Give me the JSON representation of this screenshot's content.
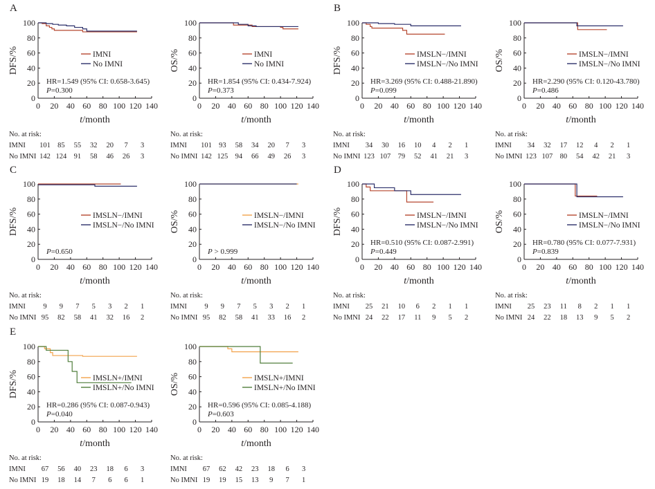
{
  "colors": {
    "imni": "#b5472f",
    "no_imni": "#2b2f6a",
    "imni_e": "#f2a24a",
    "no_imni_e": "#4f7d3a",
    "axis": "#231f20"
  },
  "axis": {
    "xlabel_italic": "t",
    "xlabel_rest": "/month",
    "xticks": [
      "0",
      "20",
      "40",
      "60",
      "80",
      "100",
      "120",
      "140"
    ],
    "yticks": [
      "0",
      "20",
      "40",
      "60",
      "80",
      "100"
    ],
    "dfs_label": "DFS/%",
    "os_label": "OS/%",
    "xlim": [
      0,
      140
    ],
    "ylim": [
      0,
      100
    ]
  },
  "risk_header": "No. at risk:",
  "risk_rows": [
    "IMNI",
    "No IMNI"
  ],
  "panels": [
    {
      "letter": "A"
    },
    {
      "letter": "B"
    },
    {
      "letter": "C"
    },
    {
      "letter": "D"
    },
    {
      "letter": "E"
    }
  ],
  "chart_data": [
    {
      "type": "line",
      "panel": "A",
      "ylabel": "DFS/%",
      "xlim": [
        0,
        140
      ],
      "ylim": [
        0,
        100
      ],
      "legend": [
        "IMNI",
        "No IMNI"
      ],
      "legend_position": "center-right",
      "hr_text": "HR=1.549 (95% CI: 0.658-3.645)",
      "p_text": "P=0.300",
      "series": [
        {
          "name": "IMNI",
          "color_key": "imni",
          "points": [
            [
              0,
              100
            ],
            [
              5,
              99
            ],
            [
              10,
              96
            ],
            [
              14,
              94
            ],
            [
              17,
              92
            ],
            [
              20,
              90
            ],
            [
              50,
              90
            ],
            [
              55,
              88
            ],
            [
              122,
              88
            ]
          ]
        },
        {
          "name": "No IMNI",
          "color_key": "no_imni",
          "points": [
            [
              0,
              100
            ],
            [
              10,
              99
            ],
            [
              18,
              98
            ],
            [
              25,
              97
            ],
            [
              35,
              96
            ],
            [
              45,
              94
            ],
            [
              55,
              92
            ],
            [
              60,
              89
            ],
            [
              122,
              89
            ]
          ]
        }
      ],
      "risk": {
        "times": [
          0,
          20,
          40,
          60,
          80,
          100,
          120,
          140
        ],
        "IMNI": [
          "101",
          "85",
          "55",
          "32",
          "20",
          "7",
          "3"
        ],
        "No IMNI": [
          "142",
          "124",
          "91",
          "58",
          "46",
          "26",
          "3"
        ]
      }
    },
    {
      "type": "line",
      "panel": "A",
      "ylabel": "OS/%",
      "xlim": [
        0,
        140
      ],
      "ylim": [
        0,
        100
      ],
      "legend": [
        "IMNI",
        "No IMNI"
      ],
      "legend_position": "center-right",
      "hr_text": "HR=1.854 (95% CI: 0.434-7.924)",
      "p_text": "P=0.373",
      "series": [
        {
          "name": "IMNI",
          "color_key": "imni",
          "points": [
            [
              0,
              100
            ],
            [
              40,
              100
            ],
            [
              42,
              97
            ],
            [
              60,
              97
            ],
            [
              65,
              95
            ],
            [
              100,
              94
            ],
            [
              103,
              92
            ],
            [
              122,
              92
            ]
          ]
        },
        {
          "name": "No IMNI",
          "color_key": "no_imni",
          "points": [
            [
              0,
              100
            ],
            [
              45,
              100
            ],
            [
              48,
              98
            ],
            [
              60,
              96
            ],
            [
              70,
              95
            ],
            [
              122,
              95
            ]
          ]
        }
      ],
      "risk": {
        "times": [
          0,
          20,
          40,
          60,
          80,
          100,
          120,
          140
        ],
        "IMNI": [
          "101",
          "93",
          "58",
          "34",
          "20",
          "7",
          "3"
        ],
        "No IMNI": [
          "142",
          "125",
          "94",
          "66",
          "49",
          "26",
          "3"
        ]
      }
    },
    {
      "type": "line",
      "panel": "B",
      "ylabel": "DFS/%",
      "xlim": [
        0,
        140
      ],
      "ylim": [
        0,
        100
      ],
      "legend": [
        "IMSLN−/IMNI",
        "IMSLN−/No IMNI"
      ],
      "legend_position": "center-right",
      "hr_text": "HR=3.269 (95% CI: 0.488-21.890)",
      "p_text": "P=0.099",
      "series": [
        {
          "name": "IMSLN−/IMNI",
          "color_key": "imni",
          "points": [
            [
              0,
              100
            ],
            [
              5,
              98
            ],
            [
              10,
              95
            ],
            [
              12,
              93
            ],
            [
              45,
              93
            ],
            [
              50,
              90
            ],
            [
              55,
              85
            ],
            [
              102,
              85
            ]
          ]
        },
        {
          "name": "IMSLN−/No IMNI",
          "color_key": "no_imni",
          "points": [
            [
              0,
              100
            ],
            [
              20,
              99
            ],
            [
              40,
              98
            ],
            [
              60,
              96
            ],
            [
              80,
              96
            ],
            [
              122,
              96
            ]
          ]
        }
      ],
      "risk": {
        "times": [
          0,
          20,
          40,
          60,
          80,
          100,
          120,
          140
        ],
        "IMNI": [
          "34",
          "30",
          "16",
          "10",
          "4",
          "2",
          "1"
        ],
        "No IMNI": [
          "123",
          "107",
          "79",
          "52",
          "41",
          "21",
          "3"
        ]
      }
    },
    {
      "type": "line",
      "panel": "B",
      "ylabel": "OS/%",
      "xlim": [
        0,
        140
      ],
      "ylim": [
        0,
        100
      ],
      "legend": [
        "IMSLN−/IMNI",
        "IMSLN−/No IMNI"
      ],
      "legend_position": "center-right",
      "hr_text": "HR=2.290 (95% CI: 0.120-43.780)",
      "p_text": "P=0.486",
      "series": [
        {
          "name": "IMSLN−/IMNI",
          "color_key": "imni",
          "points": [
            [
              0,
              100
            ],
            [
              63,
              100
            ],
            [
              66,
              91
            ],
            [
              102,
              91
            ]
          ]
        },
        {
          "name": "IMSLN−/No IMNI",
          "color_key": "no_imni",
          "points": [
            [
              0,
              100
            ],
            [
              62,
              100
            ],
            [
              65,
              96
            ],
            [
              122,
              96
            ]
          ]
        }
      ],
      "risk": {
        "times": [
          0,
          20,
          40,
          60,
          80,
          100,
          120,
          140
        ],
        "IMNI": [
          "34",
          "32",
          "17",
          "12",
          "4",
          "2",
          "1"
        ],
        "No IMNI": [
          "123",
          "107",
          "80",
          "54",
          "42",
          "21",
          "3"
        ]
      }
    },
    {
      "type": "line",
      "panel": "C",
      "ylabel": "DFS/%",
      "xlim": [
        0,
        140
      ],
      "ylim": [
        0,
        100
      ],
      "legend": [
        "IMSLN−/IMNI",
        "IMSLN−/No IMNI"
      ],
      "legend_position": "center-right",
      "hr_text": "",
      "p_text": "P=0.650",
      "series": [
        {
          "name": "IMSLN−/IMNI",
          "color_key": "imni",
          "points": [
            [
              0,
              100
            ],
            [
              102,
              100
            ]
          ]
        },
        {
          "name": "IMSLN−/No IMNI",
          "color_key": "no_imni",
          "points": [
            [
              0,
              99
            ],
            [
              68,
              99
            ],
            [
              70,
              97
            ],
            [
              122,
              97
            ]
          ]
        }
      ],
      "risk": {
        "times": [
          0,
          20,
          40,
          60,
          80,
          100,
          120,
          140
        ],
        "IMNI": [
          "9",
          "9",
          "7",
          "5",
          "3",
          "2",
          "1"
        ],
        "No IMNI": [
          "95",
          "82",
          "58",
          "41",
          "32",
          "16",
          "2"
        ]
      }
    },
    {
      "type": "line",
      "panel": "C",
      "ylabel": "OS/%",
      "xlim": [
        0,
        140
      ],
      "ylim": [
        0,
        100
      ],
      "legend": [
        "IMSLN−/IMNI",
        "IMSLN−/No IMNI"
      ],
      "legend_position": "center-right",
      "hr_text": "",
      "p_text": "P > 0.999",
      "series": [
        {
          "name": "IMSLN−/IMNI",
          "color_key": "imni_e",
          "points": [
            [
              0,
              100
            ],
            [
              122,
              100
            ]
          ]
        },
        {
          "name": "IMSLN−/No IMNI",
          "color_key": "no_imni",
          "points": [
            [
              0,
              100
            ],
            [
              120,
              100
            ]
          ]
        }
      ],
      "risk": {
        "times": [
          0,
          20,
          40,
          60,
          80,
          100,
          120,
          140
        ],
        "IMNI": [
          "9",
          "9",
          "7",
          "5",
          "3",
          "2",
          "1"
        ],
        "No IMNI": [
          "95",
          "82",
          "58",
          "41",
          "33",
          "16",
          "2"
        ]
      }
    },
    {
      "type": "line",
      "panel": "D",
      "ylabel": "DFS/%",
      "xlim": [
        0,
        140
      ],
      "ylim": [
        0,
        100
      ],
      "legend": [
        "IMSLN−/IMNI",
        "IMSLN−/No IMNI"
      ],
      "legend_position": "center-right",
      "hr_text": "HR=0.510 (95% CI: 0.087-2.991)",
      "p_text": "P=0.449",
      "series": [
        {
          "name": "IMSLN−/IMNI",
          "color_key": "imni",
          "points": [
            [
              0,
              100
            ],
            [
              5,
              96
            ],
            [
              10,
              91
            ],
            [
              50,
              91
            ],
            [
              55,
              76
            ],
            [
              88,
              76
            ]
          ]
        },
        {
          "name": "IMSLN−/No IMNI",
          "color_key": "no_imni",
          "points": [
            [
              0,
              100
            ],
            [
              10,
              100
            ],
            [
              15,
              95
            ],
            [
              25,
              95
            ],
            [
              40,
              91
            ],
            [
              55,
              91
            ],
            [
              60,
              86
            ],
            [
              122,
              86
            ]
          ]
        }
      ],
      "risk": {
        "times": [
          0,
          20,
          40,
          60,
          80,
          100,
          120,
          140
        ],
        "IMNI": [
          "25",
          "21",
          "10",
          "6",
          "2",
          "1",
          "1"
        ],
        "No IMNI": [
          "24",
          "22",
          "17",
          "11",
          "9",
          "5",
          "2"
        ]
      }
    },
    {
      "type": "line",
      "panel": "D",
      "ylabel": "OS/%",
      "xlim": [
        0,
        140
      ],
      "ylim": [
        0,
        100
      ],
      "legend": [
        "IMSLN−/IMNI",
        "IMSLN−/No IMNI"
      ],
      "legend_position": "center-right",
      "hr_text": "HR=0.780 (95% CI: 0.077-7.931)",
      "p_text": "P=0.839",
      "series": [
        {
          "name": "IMSLN−/IMNI",
          "color_key": "imni",
          "points": [
            [
              0,
              100
            ],
            [
              62,
              100
            ],
            [
              63,
              84
            ],
            [
              90,
              84
            ]
          ]
        },
        {
          "name": "IMSLN−/No IMNI",
          "color_key": "no_imni",
          "points": [
            [
              0,
              100
            ],
            [
              64,
              100
            ],
            [
              65,
              83
            ],
            [
              122,
              83
            ]
          ]
        }
      ],
      "risk": {
        "times": [
          0,
          20,
          40,
          60,
          80,
          100,
          120,
          140
        ],
        "IMNI": [
          "25",
          "23",
          "11",
          "8",
          "2",
          "1",
          "1"
        ],
        "No IMNI": [
          "24",
          "22",
          "18",
          "13",
          "9",
          "5",
          "2"
        ]
      }
    },
    {
      "type": "line",
      "panel": "E",
      "ylabel": "DFS/%",
      "xlim": [
        0,
        140
      ],
      "ylim": [
        0,
        100
      ],
      "legend": [
        "IMSLN+/IMNI",
        "IMSLN+/No IMNI"
      ],
      "legend_position": "center-right",
      "hr_text": "HR=0.286 (95% CI: 0.087-0.943)",
      "p_text": "P=0.040",
      "series": [
        {
          "name": "IMSLN+/IMNI",
          "color_key": "imni_e",
          "points": [
            [
              0,
              100
            ],
            [
              8,
              97
            ],
            [
              15,
              92
            ],
            [
              18,
              88
            ],
            [
              50,
              88
            ],
            [
              55,
              87
            ],
            [
              122,
              87
            ]
          ]
        },
        {
          "name": "IMSLN+/No IMNI",
          "color_key": "no_imni_e",
          "points": [
            [
              0,
              100
            ],
            [
              10,
              95
            ],
            [
              35,
              95
            ],
            [
              37,
              80
            ],
            [
              42,
              67
            ],
            [
              48,
              52
            ],
            [
              115,
              52
            ]
          ]
        }
      ],
      "risk": {
        "times": [
          0,
          20,
          40,
          60,
          80,
          100,
          120,
          140
        ],
        "IMNI": [
          "67",
          "56",
          "40",
          "23",
          "18",
          "6",
          "3"
        ],
        "No IMNI": [
          "19",
          "18",
          "14",
          "7",
          "6",
          "6",
          "1"
        ]
      }
    },
    {
      "type": "line",
      "panel": "E",
      "ylabel": "OS/%",
      "xlim": [
        0,
        140
      ],
      "ylim": [
        0,
        100
      ],
      "legend": [
        "IMSLN+/IMNI",
        "IMSLN+/No IMNI"
      ],
      "legend_position": "center-right",
      "hr_text": "HR=0.596 (95% CI: 0.085-4.188)",
      "p_text": "P=0.603",
      "series": [
        {
          "name": "IMSLN+/IMNI",
          "color_key": "imni_e",
          "points": [
            [
              0,
              100
            ],
            [
              30,
              100
            ],
            [
              35,
              97
            ],
            [
              40,
              93
            ],
            [
              122,
              93
            ]
          ]
        },
        {
          "name": "IMSLN+/No IMNI",
          "color_key": "no_imni_e",
          "points": [
            [
              0,
              100
            ],
            [
              72,
              100
            ],
            [
              75,
              78
            ],
            [
              115,
              78
            ]
          ]
        }
      ],
      "risk": {
        "times": [
          0,
          20,
          40,
          60,
          80,
          100,
          120,
          140
        ],
        "IMNI": [
          "67",
          "62",
          "42",
          "23",
          "18",
          "6",
          "3"
        ],
        "No IMNI": [
          "19",
          "19",
          "15",
          "13",
          "9",
          "7",
          "1"
        ]
      }
    }
  ]
}
